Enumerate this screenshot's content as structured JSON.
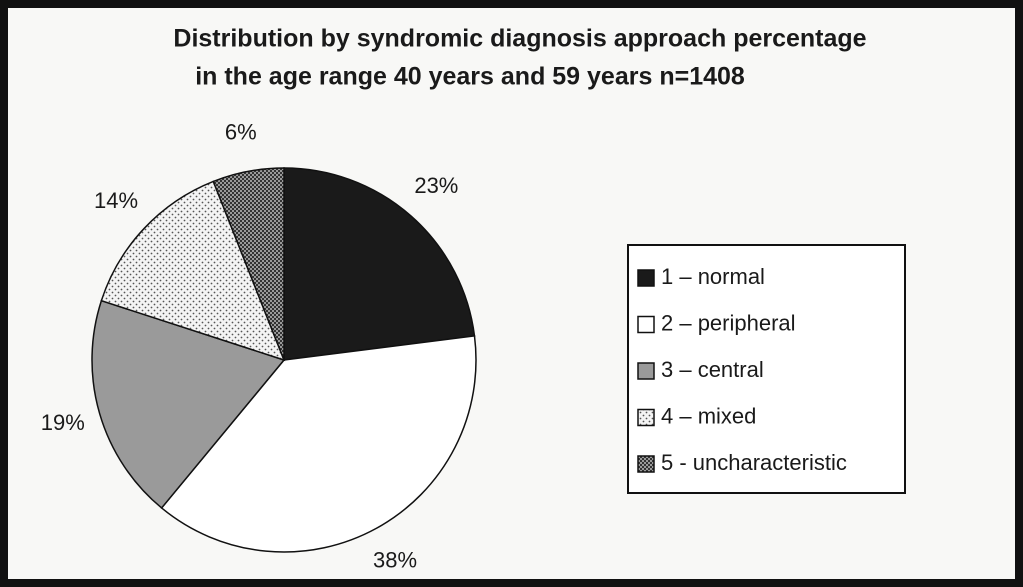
{
  "chart_data": {
    "type": "pie",
    "title": "Distribution by syndromic diagnosis approach percentage",
    "subtitle": "in the age range 40 years and 59 years    n=1408",
    "categories": [
      "1 – normal",
      "2 – peripheral",
      "3 – central",
      "4 – mixed",
      "5 - uncharacteristic"
    ],
    "values": [
      23,
      38,
      19,
      14,
      6
    ],
    "value_labels": [
      "23%",
      "38%",
      "19%",
      "14%",
      "6%"
    ],
    "colors": [
      "#1a1a1a",
      "#ffffff",
      "#9a9a9a",
      "#f4f4f4",
      "#666666"
    ],
    "patterns": [
      "solid",
      "solid",
      "solid",
      "dots",
      "checker"
    ],
    "legend": "right"
  }
}
